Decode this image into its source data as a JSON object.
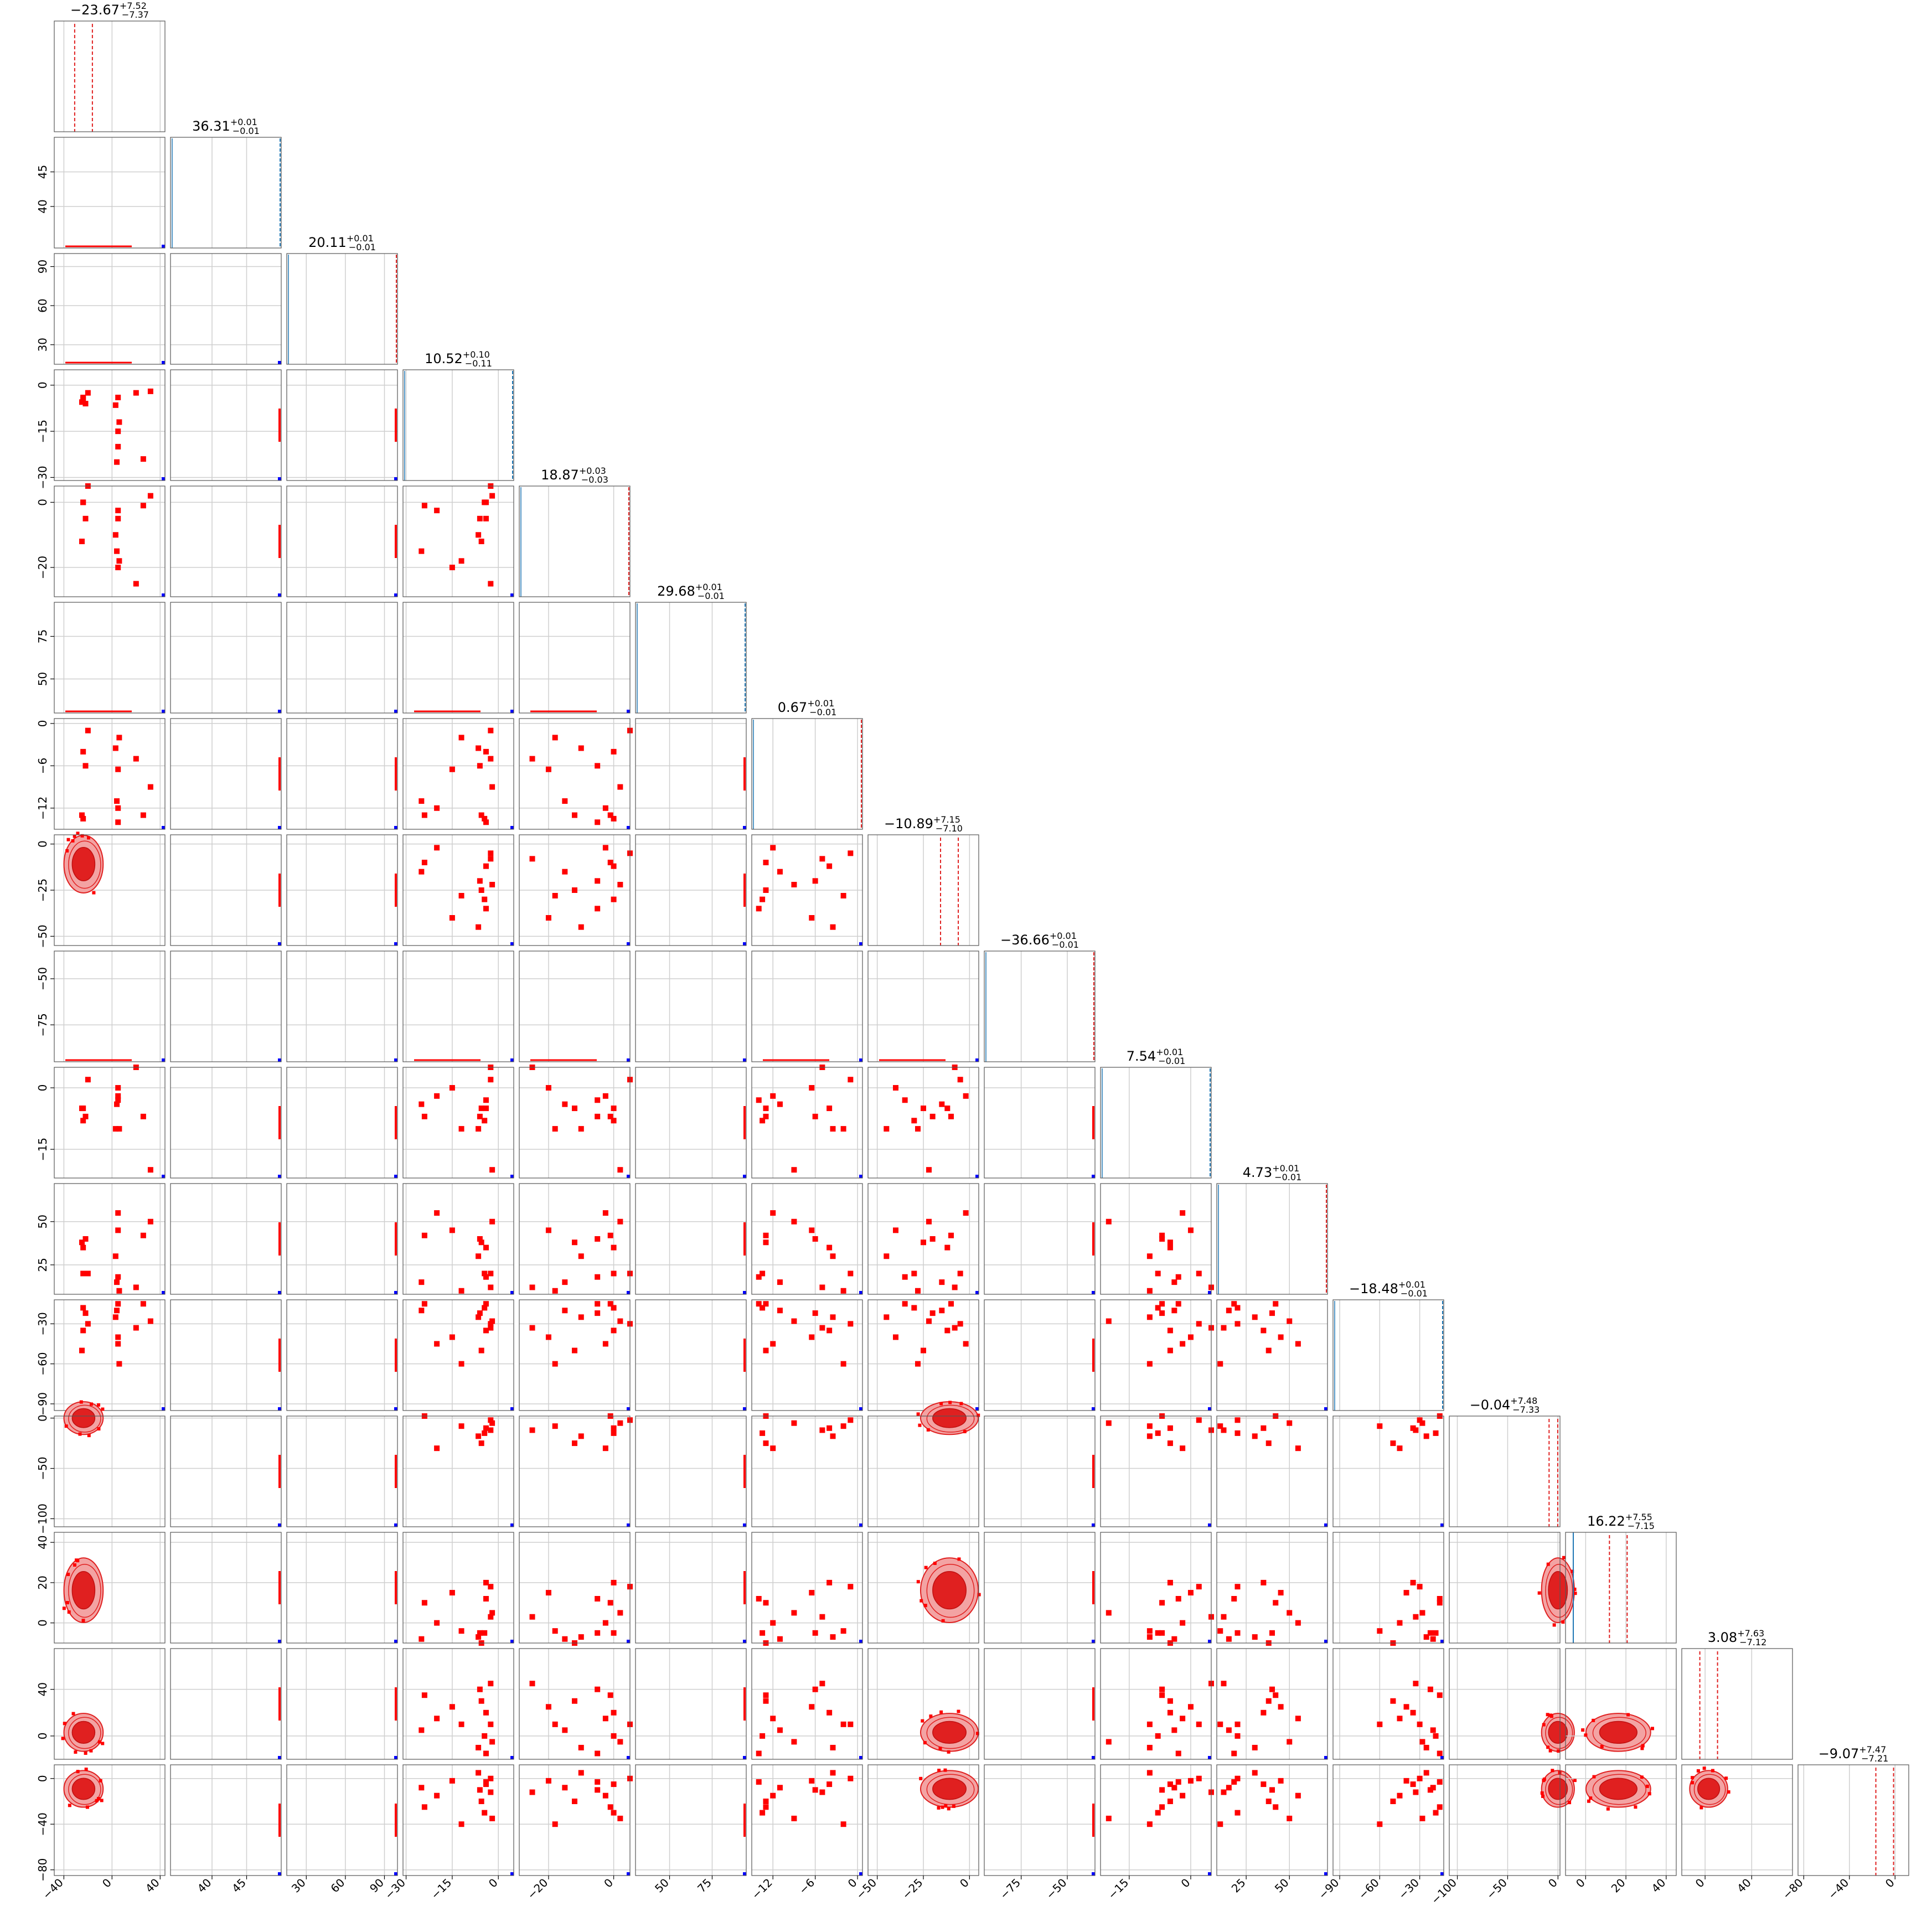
{
  "figure": {
    "type": "corner_plot",
    "description_colors": {
      "posterior_fill_light": "#f3a3a3",
      "posterior_fill_dark": "#e02020",
      "marker": "#ff0000",
      "truth_line": "#1f77b4",
      "outlier_marker": "#0000ff",
      "grid": "#cfcfcf",
      "axis": "#555555"
    }
  },
  "chart_data": {
    "type": "scatter",
    "n_params": 16,
    "grid": true,
    "titles": [
      {
        "value": "−23.67",
        "plus": "+7.52",
        "minus": "−7.37"
      },
      {
        "value": "36.31",
        "plus": "+0.01",
        "minus": "−0.01"
      },
      {
        "value": "20.11",
        "plus": "+0.01",
        "minus": "−0.01"
      },
      {
        "value": "10.52",
        "plus": "+0.10",
        "minus": "−0.11"
      },
      {
        "value": "18.87",
        "plus": "+0.03",
        "minus": "−0.03"
      },
      {
        "value": "29.68",
        "plus": "+0.01",
        "minus": "−0.01"
      },
      {
        "value": "0.67",
        "plus": "+0.01",
        "minus": "−0.01"
      },
      {
        "value": "−10.89",
        "plus": "+7.15",
        "minus": "−7.10"
      },
      {
        "value": "−36.66",
        "plus": "+0.01",
        "minus": "−0.01"
      },
      {
        "value": "7.54",
        "plus": "+0.01",
        "minus": "−0.01"
      },
      {
        "value": "4.73",
        "plus": "+0.01",
        "minus": "−0.01"
      },
      {
        "value": "−18.48",
        "plus": "+0.01",
        "minus": "−0.01"
      },
      {
        "value": "−0.04",
        "plus": "+7.48",
        "minus": "−7.33"
      },
      {
        "value": "16.22",
        "plus": "+7.55",
        "minus": "−7.15"
      },
      {
        "value": "3.08",
        "plus": "+7.63",
        "minus": "−7.12"
      },
      {
        "value": "−9.07",
        "plus": "+7.47",
        "minus": "−7.21"
      }
    ],
    "ranges": [
      [
        -48,
        44
      ],
      [
        34,
        50
      ],
      [
        15,
        100
      ],
      [
        -31,
        5
      ],
      [
        -29,
        5
      ],
      [
        30,
        95
      ],
      [
        -15,
        0.7
      ],
      [
        -55,
        5
      ],
      [
        -95,
        -35
      ],
      [
        -22,
        5
      ],
      [
        8,
        72
      ],
      [
        -95,
        -12
      ],
      [
        -108,
        2
      ],
      [
        -10,
        45
      ],
      [
        -20,
        75
      ],
      [
        -85,
        12
      ]
    ],
    "xticks": [
      [
        -40,
        0,
        40
      ],
      [
        40,
        45
      ],
      [
        30,
        60,
        90
      ],
      [
        -30,
        -15,
        0
      ],
      [
        -20,
        0
      ],
      [
        50,
        75
      ],
      [
        -12,
        -6,
        0
      ],
      [
        -50,
        -25,
        0
      ],
      [
        -75,
        -50
      ],
      [
        -15,
        0
      ],
      [
        25,
        50
      ],
      [
        -90,
        -60,
        -30
      ],
      [
        -100,
        -50,
        0
      ],
      [
        0,
        20,
        40
      ],
      [
        0,
        40
      ],
      [
        -80,
        -40,
        0
      ]
    ],
    "xtick_labels": [
      [
        "−40",
        "0",
        "40"
      ],
      [
        "40",
        "45"
      ],
      [
        "30",
        "60",
        "90"
      ],
      [
        "−30",
        "−15",
        "0"
      ],
      [
        "−20",
        "0"
      ],
      [
        "50",
        "75"
      ],
      [
        "−12",
        "−6",
        "0"
      ],
      [
        "−50",
        "−25",
        "0"
      ],
      [
        "−75",
        "−50"
      ],
      [
        "−15",
        "0"
      ],
      [
        "25",
        "50"
      ],
      [
        "−90",
        "−60",
        "−30"
      ],
      [
        "−100",
        "−50",
        "0"
      ],
      [
        "0",
        "20",
        "40"
      ],
      [
        "0",
        "40"
      ],
      [
        "−80",
        "−40",
        "0"
      ]
    ],
    "yticks": [
      [],
      [
        40,
        45
      ],
      [
        30,
        60,
        90
      ],
      [
        -30,
        -15,
        0
      ],
      [
        -20,
        0
      ],
      [
        50,
        75
      ],
      [
        -12,
        -6,
        0
      ],
      [
        -50,
        -25,
        0
      ],
      [
        -75,
        -50
      ],
      [
        -15,
        0
      ],
      [
        25,
        50
      ],
      [
        -90,
        -60,
        -30
      ],
      [
        -100,
        -50,
        0
      ],
      [
        0,
        20,
        40
      ],
      [
        0,
        40
      ],
      [
        -80,
        -40,
        0
      ]
    ],
    "ytick_labels": [
      [],
      [
        "40",
        "45"
      ],
      [
        "30",
        "60",
        "90"
      ],
      [
        "−30",
        "−15",
        "0"
      ],
      [
        "−20",
        "0"
      ],
      [
        "50",
        "75"
      ],
      [
        "−12",
        "−6",
        "0"
      ],
      [
        "−50",
        "−25",
        "0"
      ],
      [
        "−75",
        "−50"
      ],
      [
        "−15",
        "0"
      ],
      [
        "25",
        "50"
      ],
      [
        "−90",
        "−60",
        "−30"
      ],
      [
        "−100",
        "−50",
        "0"
      ],
      [
        "0",
        "20",
        "40"
      ],
      [
        "0",
        "40"
      ],
      [
        "−80",
        "−40",
        "0"
      ]
    ],
    "posterior_blobs": [
      {
        "x_param": 0,
        "y_param": 7,
        "cx": -23.67,
        "cy": -10.89,
        "sx": 7.4,
        "sy": 7.1
      },
      {
        "x_param": 0,
        "y_param": 12,
        "cx": -23.67,
        "cy": -0.04,
        "sx": 7.4,
        "sy": 7.4
      },
      {
        "x_param": 0,
        "y_param": 13,
        "cx": -23.67,
        "cy": 16.22,
        "sx": 7.4,
        "sy": 7.3
      },
      {
        "x_param": 0,
        "y_param": 14,
        "cx": -23.67,
        "cy": 3.08,
        "sx": 7.4,
        "sy": 7.4
      },
      {
        "x_param": 0,
        "y_param": 15,
        "cx": -23.67,
        "cy": -9.07,
        "sx": 7.4,
        "sy": 7.3
      },
      {
        "x_param": 7,
        "y_param": 12,
        "cx": -10.89,
        "cy": -0.04,
        "sx": 7.1,
        "sy": 7.4
      },
      {
        "x_param": 7,
        "y_param": 13,
        "cx": -10.89,
        "cy": 16.22,
        "sx": 7.1,
        "sy": 7.3
      },
      {
        "x_param": 7,
        "y_param": 14,
        "cx": -10.89,
        "cy": 3.08,
        "sx": 7.1,
        "sy": 7.4
      },
      {
        "x_param": 7,
        "y_param": 15,
        "cx": -10.89,
        "cy": -9.07,
        "sx": 7.1,
        "sy": 7.3
      },
      {
        "x_param": 12,
        "y_param": 13,
        "cx": -0.04,
        "cy": 16.22,
        "sx": 7.4,
        "sy": 7.3
      },
      {
        "x_param": 12,
        "y_param": 14,
        "cx": -0.04,
        "cy": 3.08,
        "sx": 7.4,
        "sy": 7.4
      },
      {
        "x_param": 12,
        "y_param": 15,
        "cx": -0.04,
        "cy": -9.07,
        "sx": 7.4,
        "sy": 7.3
      },
      {
        "x_param": 13,
        "y_param": 14,
        "cx": 16.22,
        "cy": 3.08,
        "sx": 7.3,
        "sy": 7.4
      },
      {
        "x_param": 13,
        "y_param": 15,
        "cx": 16.22,
        "cy": -9.07,
        "sx": 7.3,
        "sy": 7.3
      },
      {
        "x_param": 14,
        "y_param": 15,
        "cx": 3.08,
        "cy": -9.07,
        "sx": 7.4,
        "sy": 7.3
      }
    ],
    "sample_points": {
      "p0": [
        -20,
        -24,
        -22,
        -25,
        -24,
        3,
        5,
        5,
        4,
        26,
        32,
        20,
        6,
        5
      ],
      "p3": [
        -2.5,
        -4,
        -6,
        -5.5,
        -4.5,
        -6.5,
        -15,
        -20,
        -25,
        -24,
        -2,
        -2.5,
        -12,
        -4
      ],
      "p4": [
        5,
        0,
        -5,
        -12,
        0,
        -10,
        -20,
        -2.5,
        -15,
        -1,
        2,
        -25,
        -18,
        -5
      ],
      "p6": [
        -1,
        -4,
        -6,
        -13,
        -13.5,
        -3.5,
        -6.5,
        -12,
        -11,
        -13,
        -9,
        -5,
        -2,
        -14
      ],
      "p9": [
        2,
        -5,
        -7,
        -5,
        -8,
        -10,
        0,
        -2,
        -4,
        -7,
        -20,
        5,
        -10,
        -3
      ],
      "p10": [
        20,
        35,
        40,
        38,
        20,
        30,
        45,
        55,
        15,
        42,
        50,
        12,
        10,
        18
      ],
      "p11": [
        -30,
        -35,
        -22,
        -50,
        -18,
        -25,
        -40,
        -45,
        -20,
        -15,
        -28,
        -33,
        -60,
        -15
      ],
      "p12": [
        -2,
        -10,
        8,
        -25,
        -15,
        -18,
        10,
        -30,
        5,
        2,
        -5,
        -12,
        -8,
        4
      ],
      "p13": [
        18,
        20,
        -5,
        -10,
        -5,
        -7,
        15,
        0,
        -8,
        10,
        5,
        3,
        -4,
        12
      ],
      "p14": [
        10,
        20,
        40,
        30,
        0,
        -10,
        25,
        15,
        5,
        35,
        -5,
        45,
        10,
        -15
      ],
      "p15": [
        0,
        -5,
        -10,
        -20,
        -30,
        5,
        -2,
        -15,
        -8,
        -25,
        -35,
        -12,
        -40,
        -3
      ],
      "p7": [
        -5,
        -12,
        -20,
        -25,
        -30,
        -45,
        -40,
        -2,
        -15,
        -10,
        -22,
        -8,
        -28,
        -35
      ]
    }
  }
}
